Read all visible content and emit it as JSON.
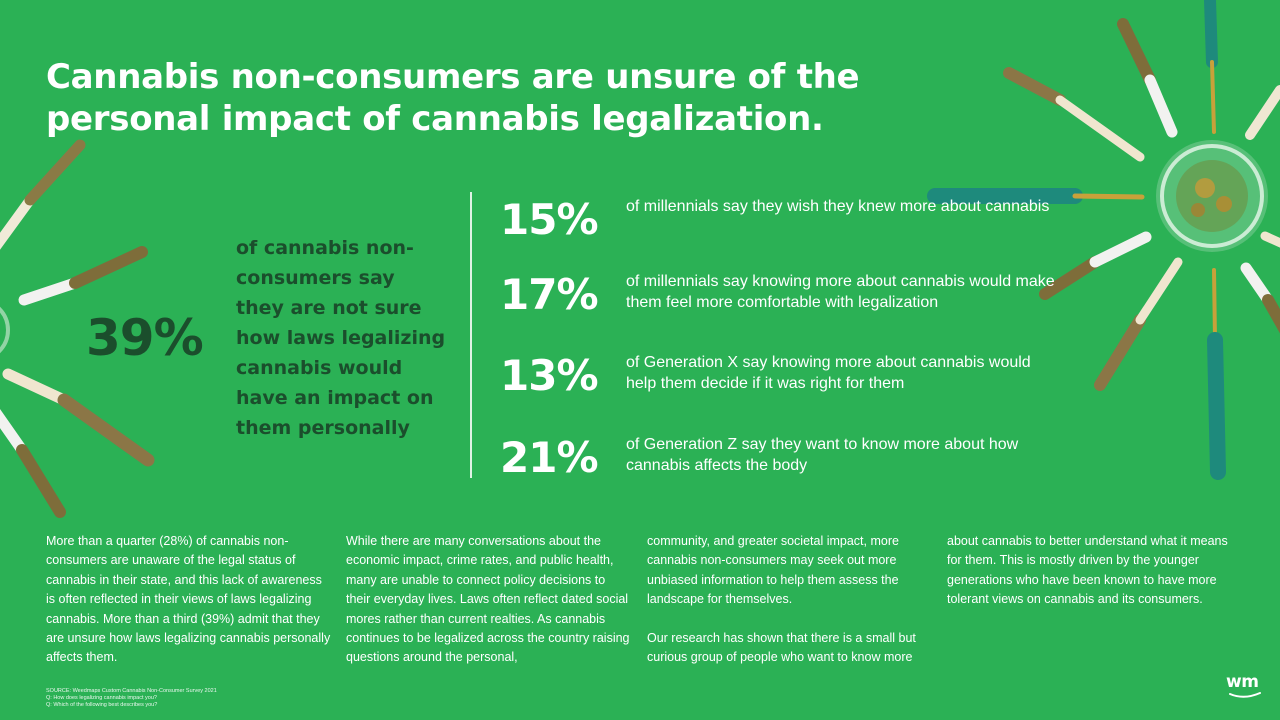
{
  "title": "Cannabis non-consumers are unsure of the personal impact of cannabis legalization.",
  "highlight": {
    "value": "39%",
    "description": "of cannabis non-consumers say they are not sure how laws legalizing cannabis would have an impact on them personally"
  },
  "stats": [
    {
      "value": "15%",
      "description": "of millennials say they wish they knew more about cannabis"
    },
    {
      "value": "17%",
      "description": "of millennials say knowing more about cannabis would make them feel more comfortable with legalization"
    },
    {
      "value": "13%",
      "description": "of Generation X say knowing more about cannabis would help them decide if it was right for them"
    },
    {
      "value": "21%",
      "description": "of Generation Z say they want to know more about how cannabis affects the body"
    }
  ],
  "body": {
    "col1": "More than a quarter (28%) of cannabis non-consumers are unaware of the legal status of cannabis in their state, and this lack of awareness is often reflected in their views of laws legalizing cannabis. More than a third (39%) admit that they are unsure how laws legalizing cannabis personally affects them.",
    "col2": "While there are many conversations about the economic impact, crime rates, and public health, many are unable to connect policy decisions to their everyday lives. Laws often reflect dated social mores rather than current realties. As cannabis continues to be legalized across the country raising questions around the personal,",
    "col3_p1": "community, and greater societal impact, more cannabis non-consumers may seek out more unbiased information to help them assess the landscape for themselves.",
    "col3_p2": "Our research has shown that there is a small but curious group of people who want to know more",
    "col4": "about cannabis to better understand what it means for them. This is mostly driven by the younger generations who have been known to have more tolerant views on cannabis and its consumers."
  },
  "footnote": {
    "source": "SOURCE: Weedmaps Custom Cannabis Non-Consumer Survey 2021",
    "q1": "Q: How does legalizing cannabis impact you?",
    "q2": "Q: Which of the following best describes you?"
  },
  "logo": {
    "text": "wm"
  },
  "colors": {
    "background": "#2bb155",
    "dark_text": "#1b4e2c",
    "light_text": "#ffffff"
  }
}
